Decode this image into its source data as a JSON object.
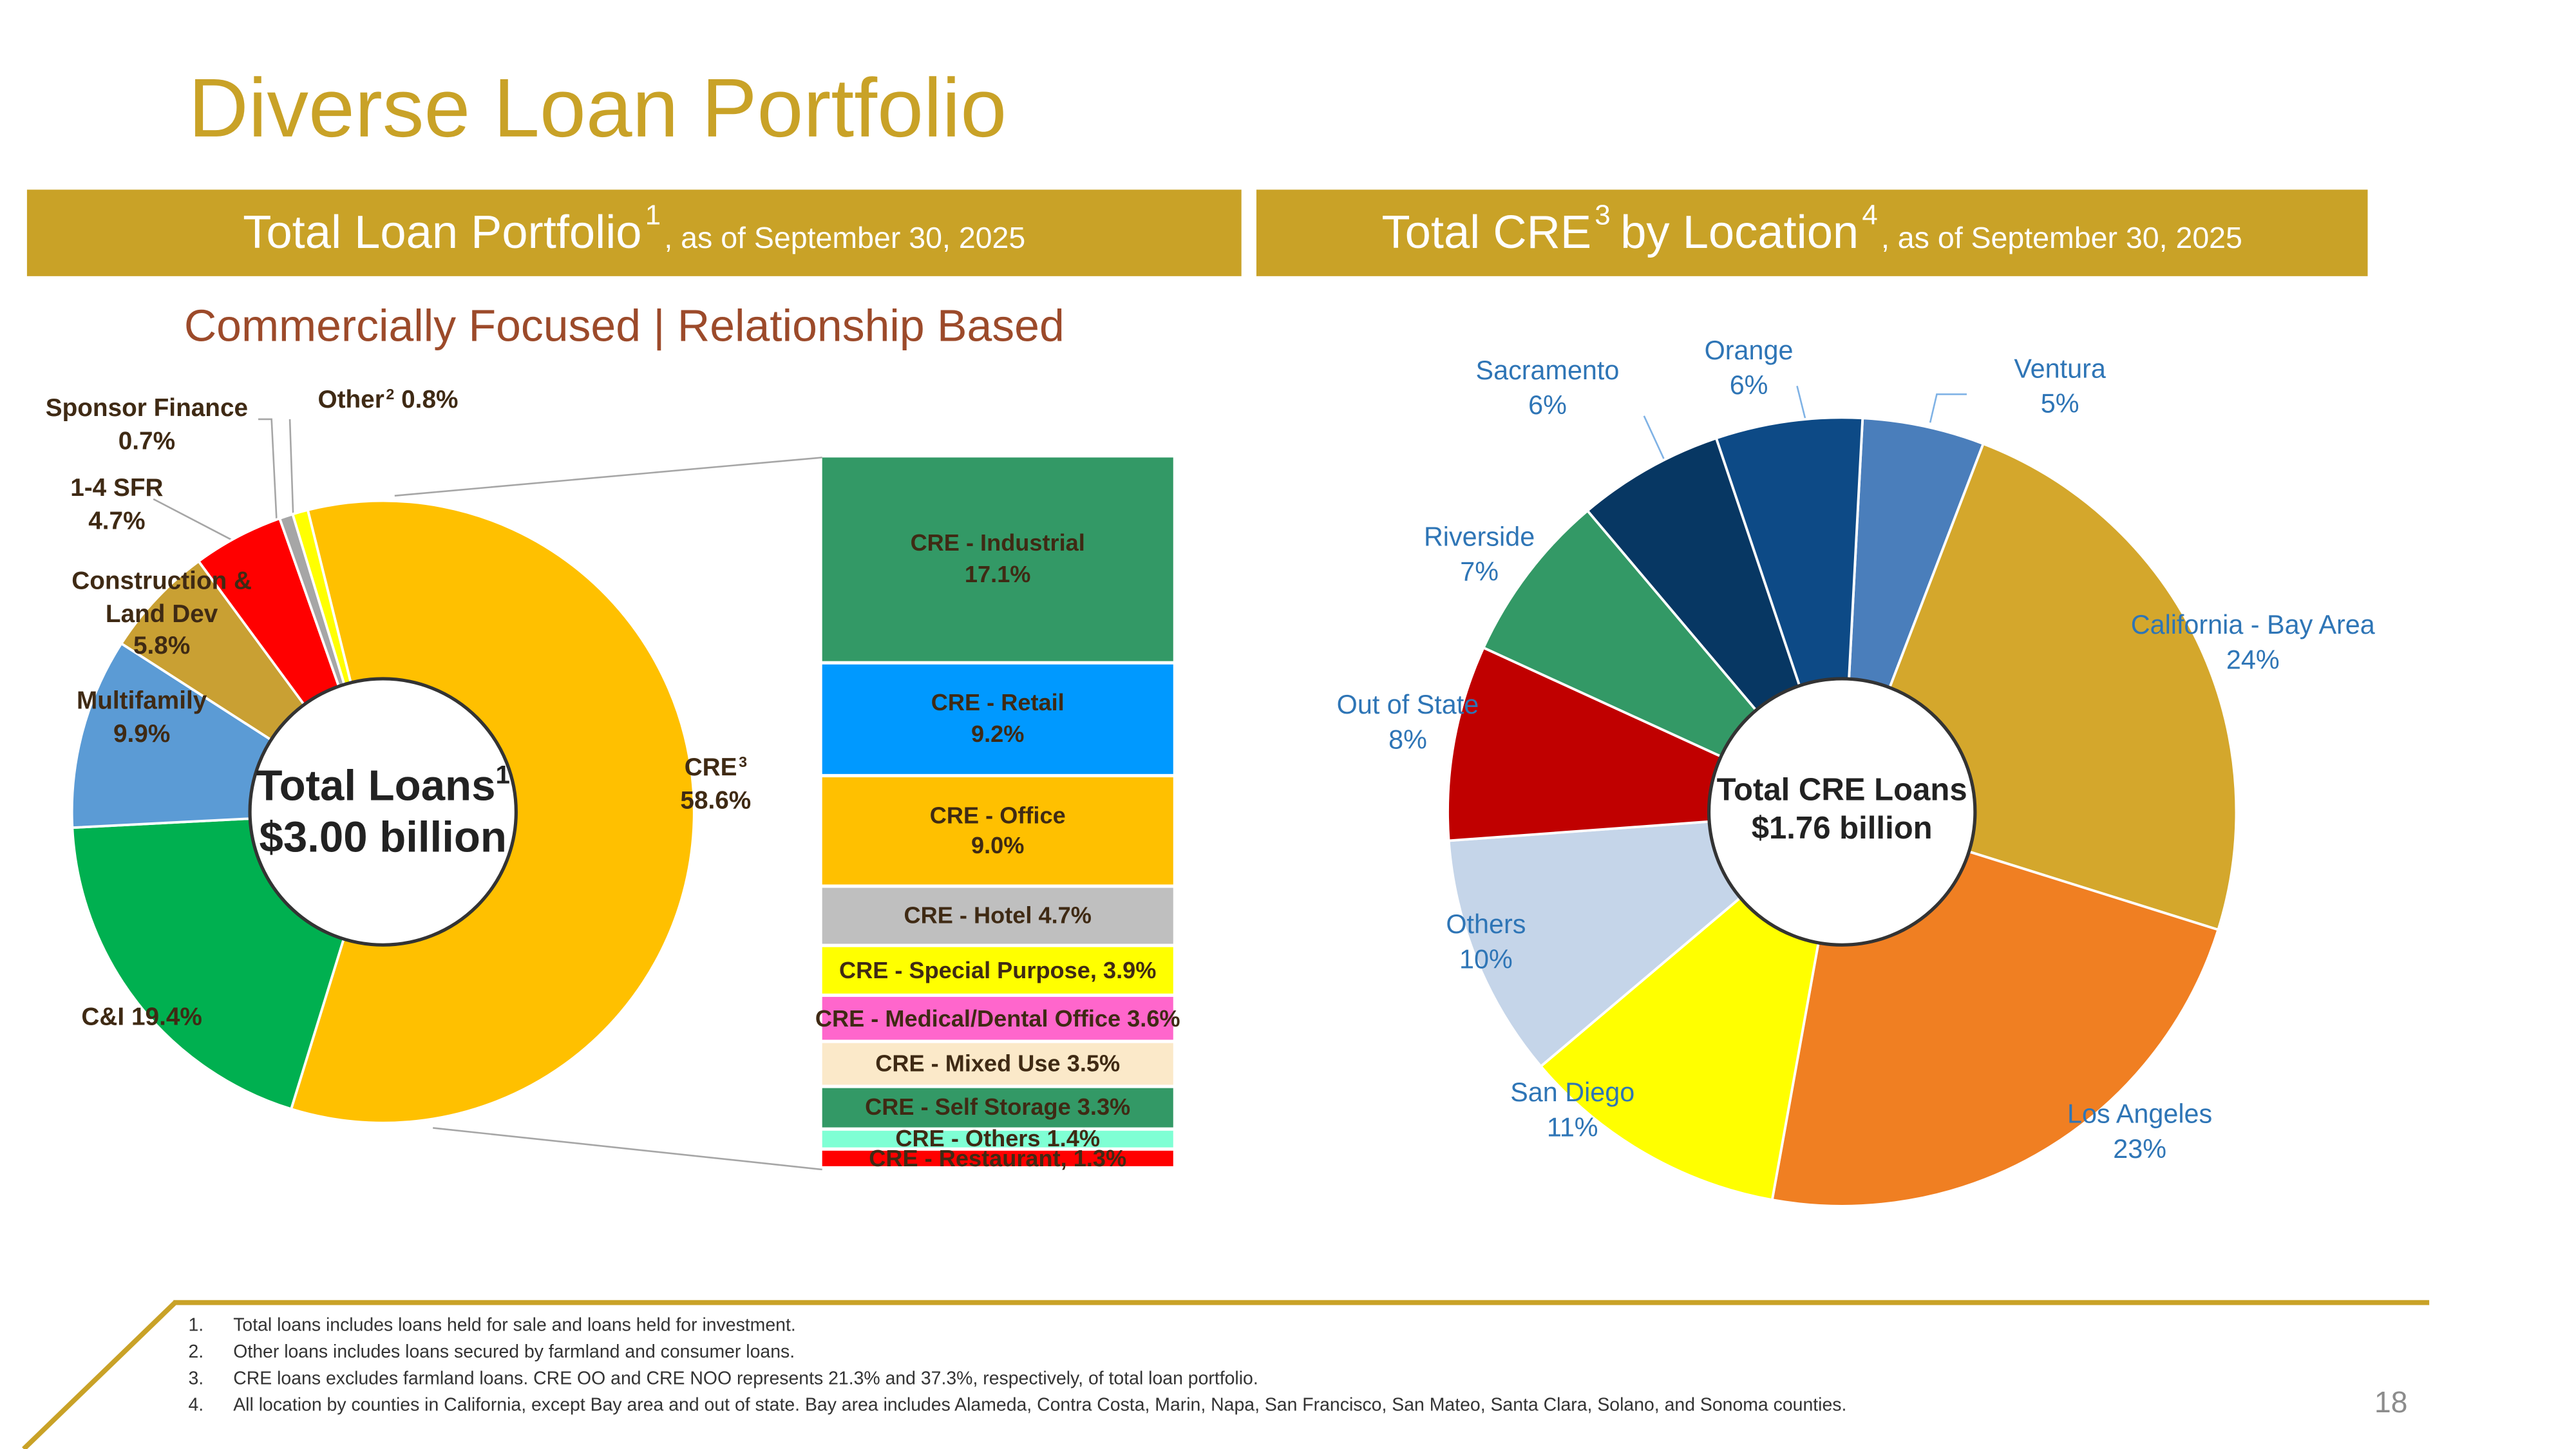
{
  "title": "Diverse Loan Portfolio",
  "chart_data": [
    {
      "type": "pie",
      "header": [
        {
          "text": "Total Loan Portfolio"
        },
        {
          "sup": "1"
        },
        {
          "small": ", as of September 30, 2025"
        }
      ],
      "subtitle": "Commercially Focused | Relationship Based",
      "center_label": "Total Loans",
      "center_note": "1",
      "center_value": "$3.00 billion",
      "categories": [
        "CRE",
        "C&I",
        "Multifamily",
        "Construction & Land Dev",
        "1-4 SFR",
        "Sponsor Finance",
        "Other"
      ],
      "category_notes": [
        "3",
        null,
        null,
        null,
        null,
        null,
        "2"
      ],
      "values": [
        58.6,
        19.4,
        9.9,
        5.8,
        4.7,
        0.7,
        0.8
      ],
      "value_labels": [
        "58.6%",
        "19.4%",
        "9.9%",
        "5.8%",
        "4.7%",
        "0.7%",
        "0.8%"
      ],
      "colors": [
        "#FFC000",
        "#00B050",
        "#5B9BD5",
        "#C9A033",
        "#FF0000",
        "#A6A6A6",
        "#FFFF00"
      ]
    },
    {
      "type": "bar",
      "stacked": true,
      "categories": [
        "CRE - Industrial",
        "CRE - Retail",
        "CRE - Office",
        "CRE - Hotel",
        "CRE - Special Purpose,",
        "CRE - Medical/Dental Office",
        "CRE - Mixed Use",
        "CRE - Self Storage",
        "CRE - Others",
        "CRE - Restaurant,"
      ],
      "values": [
        17.1,
        9.2,
        9.0,
        4.7,
        3.9,
        3.6,
        3.5,
        3.3,
        1.4,
        1.3
      ],
      "value_labels": [
        "17.1%",
        "9.2%",
        "9.0%",
        "4.7%",
        "3.9%",
        "3.6%",
        "3.5%",
        "3.3%",
        "1.4%",
        "1.3%"
      ],
      "colors": [
        "#339966",
        "#0099FF",
        "#FFC000",
        "#BFBFBF",
        "#FFFF00",
        "#FF66CC",
        "#FBE9C9",
        "#339966",
        "#7FFFD4",
        "#FF0000"
      ]
    },
    {
      "type": "pie",
      "header": [
        {
          "text": "Total CRE"
        },
        {
          "sup": "3"
        },
        {
          "text": "by Location"
        },
        {
          "sup": "4"
        },
        {
          "small": ", as of September 30, 2025"
        }
      ],
      "center_label": "Total CRE Loans",
      "center_value": "$1.76 billion",
      "categories": [
        "Ventura",
        "California - Bay Area",
        "Los Angeles",
        "San Diego",
        "Others",
        "Out of State",
        "Riverside",
        "Sacramento",
        "Orange"
      ],
      "values": [
        5,
        24,
        23,
        11,
        10,
        8,
        7,
        6,
        6
      ],
      "value_labels": [
        "5%",
        "24%",
        "23%",
        "11%",
        "10%",
        "8%",
        "7%",
        "6%",
        "6%"
      ],
      "colors": [
        "#4A7EBB",
        "#D4A72C",
        "#F07F22",
        "#FFFF00",
        "#C5D5E9",
        "#C00000",
        "#339966",
        "#073763",
        "#0D4A86"
      ]
    }
  ],
  "footnotes": [
    {
      "number": "1.",
      "text": "Total loans includes loans held for sale and loans held for investment."
    },
    {
      "number": "2.",
      "text": "Other loans includes loans secured by farmland and consumer loans."
    },
    {
      "number": "3.",
      "text": "CRE loans excludes farmland loans. CRE OO and CRE NOO represents 21.3% and 37.3%, respectively, of total loan portfolio."
    },
    {
      "number": "4.",
      "text": "All location by counties in California, except Bay area and out of state.  Bay area includes Alameda, Contra Costa, Marin, Napa, San Francisco, San Mateo, Santa Clara, Solano, and Sonoma counties."
    }
  ],
  "page_number": "18"
}
